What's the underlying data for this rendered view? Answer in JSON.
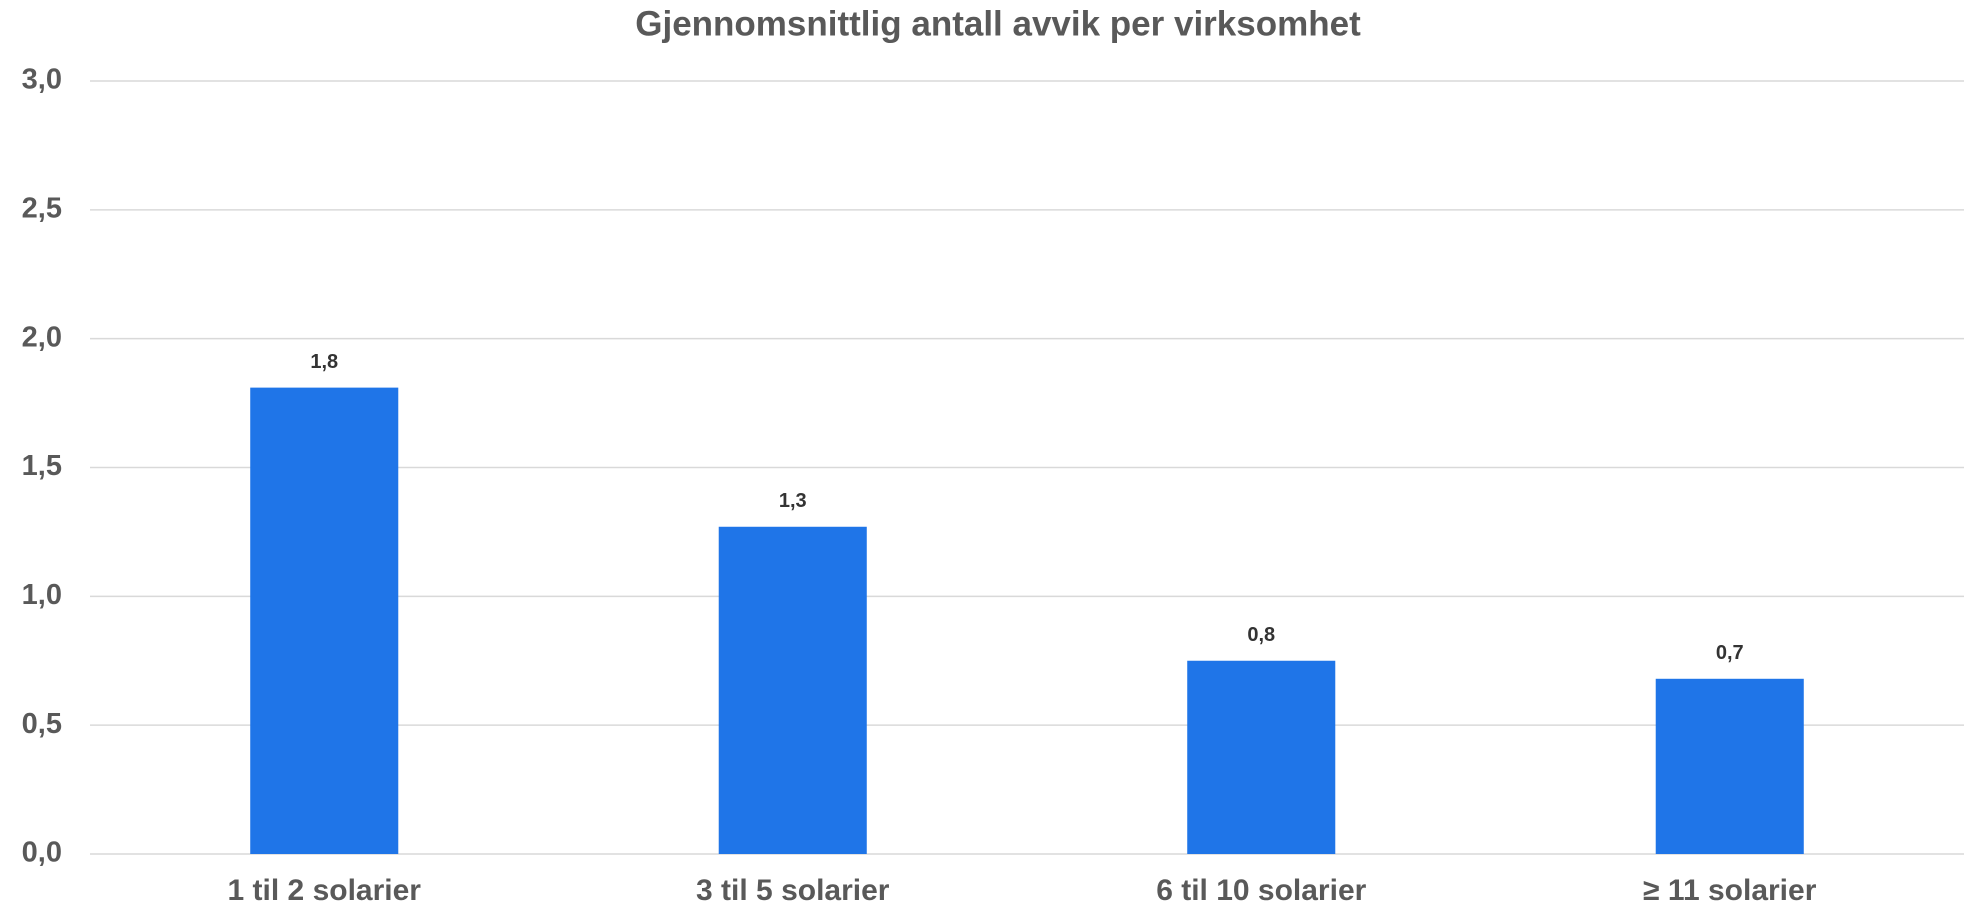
{
  "chart_data": {
    "type": "bar",
    "title": "Gjennomsnittlig antall avvik per virksomhet",
    "categories": [
      "1 til 2 solarier",
      "3 til 5 solarier",
      "6 til 10 solarier",
      "≥ 11 solarier"
    ],
    "values": [
      1.81,
      1.27,
      0.75,
      0.68
    ],
    "value_labels": [
      "1,8",
      "1,3",
      "0,8",
      "0,7"
    ],
    "color": "#1f75e8",
    "ylim": [
      0,
      3
    ],
    "yticks": [
      {
        "value": 0,
        "label": "0,0"
      },
      {
        "value": 0.5,
        "label": "0,5"
      },
      {
        "value": 1,
        "label": "1,0"
      },
      {
        "value": 1.5,
        "label": "1,5"
      },
      {
        "value": 2,
        "label": "2,0"
      },
      {
        "value": 2.5,
        "label": "2,5"
      },
      {
        "value": 3,
        "label": "3,0"
      }
    ],
    "grid": true
  }
}
